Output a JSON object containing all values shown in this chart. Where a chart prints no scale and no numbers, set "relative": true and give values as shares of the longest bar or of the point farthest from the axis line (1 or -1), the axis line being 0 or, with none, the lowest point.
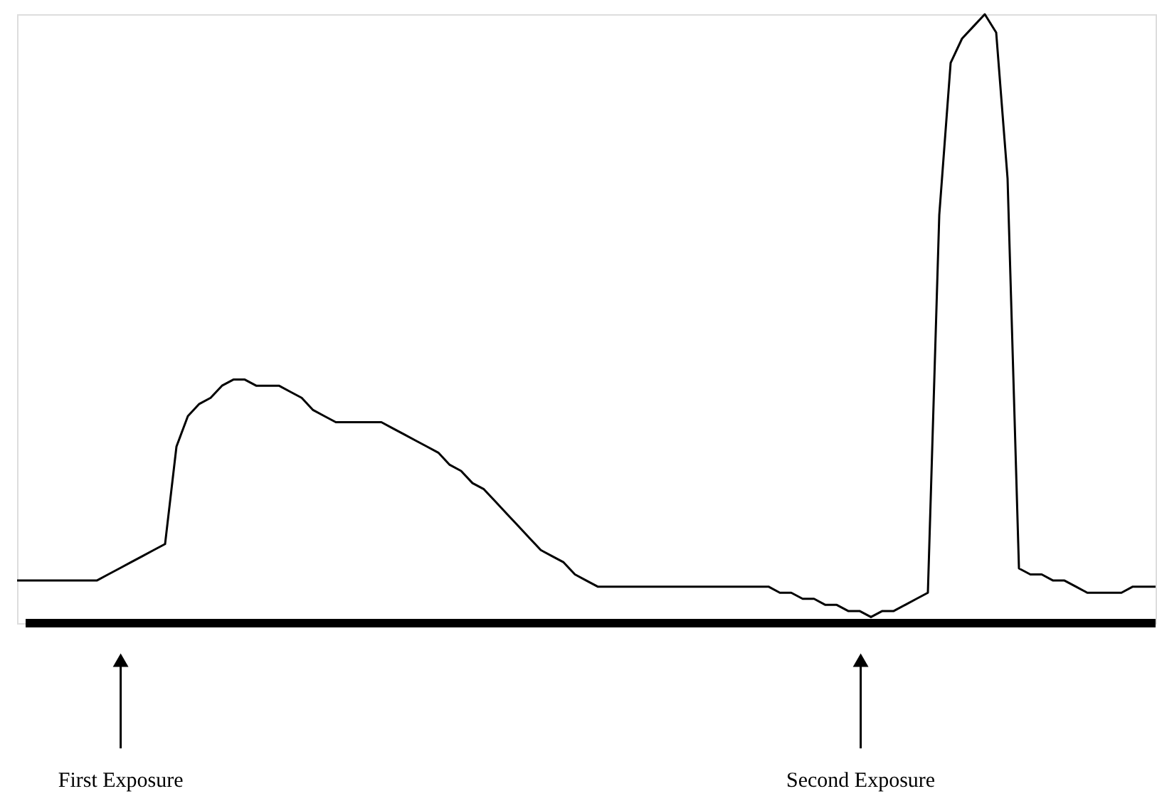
{
  "chart_data": {
    "type": "line",
    "relative": true,
    "color": "#000000",
    "categories": [
      null,
      null,
      null,
      null,
      null,
      null,
      null,
      null,
      null,
      null,
      null,
      null,
      null,
      null,
      null,
      null,
      null,
      null,
      null,
      null,
      null,
      null,
      null,
      null,
      null,
      null,
      null,
      null,
      null,
      null,
      null,
      null,
      null,
      null,
      null,
      null,
      null,
      null,
      null,
      null,
      null,
      null,
      null,
      null,
      null,
      null,
      null,
      null,
      null,
      null,
      null,
      null,
      null,
      null,
      null,
      null,
      null,
      null,
      null,
      null,
      null,
      null,
      null,
      null,
      null,
      null,
      null,
      null,
      null,
      null,
      null,
      null,
      null,
      null,
      null,
      null,
      null,
      null,
      null,
      null,
      null,
      null,
      null,
      null,
      null,
      null,
      null,
      null,
      null,
      null,
      null,
      null,
      null,
      null,
      null,
      null,
      null,
      null,
      null,
      null,
      null
    ],
    "values": [
      0.07,
      0.07,
      0.07,
      0.07,
      0.07,
      0.07,
      0.07,
      0.07,
      0.08,
      0.09,
      0.1,
      0.11,
      0.12,
      0.13,
      0.29,
      0.34,
      0.36,
      0.37,
      0.39,
      0.4,
      0.4,
      0.39,
      0.39,
      0.39,
      0.38,
      0.37,
      0.35,
      0.34,
      0.33,
      0.33,
      0.33,
      0.33,
      0.33,
      0.32,
      0.31,
      0.3,
      0.29,
      0.28,
      0.26,
      0.25,
      0.23,
      0.22,
      0.2,
      0.18,
      0.16,
      0.14,
      0.12,
      0.11,
      0.1,
      0.08,
      0.07,
      0.06,
      0.06,
      0.06,
      0.06,
      0.06,
      0.06,
      0.06,
      0.06,
      0.06,
      0.06,
      0.06,
      0.06,
      0.06,
      0.06,
      0.06,
      0.06,
      0.05,
      0.05,
      0.04,
      0.04,
      0.03,
      0.03,
      0.02,
      0.02,
      0.01,
      0.02,
      0.02,
      0.03,
      0.04,
      0.05,
      0.67,
      0.92,
      0.96,
      0.98,
      1.0,
      0.97,
      0.73,
      0.09,
      0.08,
      0.08,
      0.07,
      0.07,
      0.06,
      0.05,
      0.05,
      0.05,
      0.05,
      0.06,
      0.06,
      0.06
    ],
    "annotations": [
      "First Exposure",
      "Second Exposure"
    ]
  }
}
